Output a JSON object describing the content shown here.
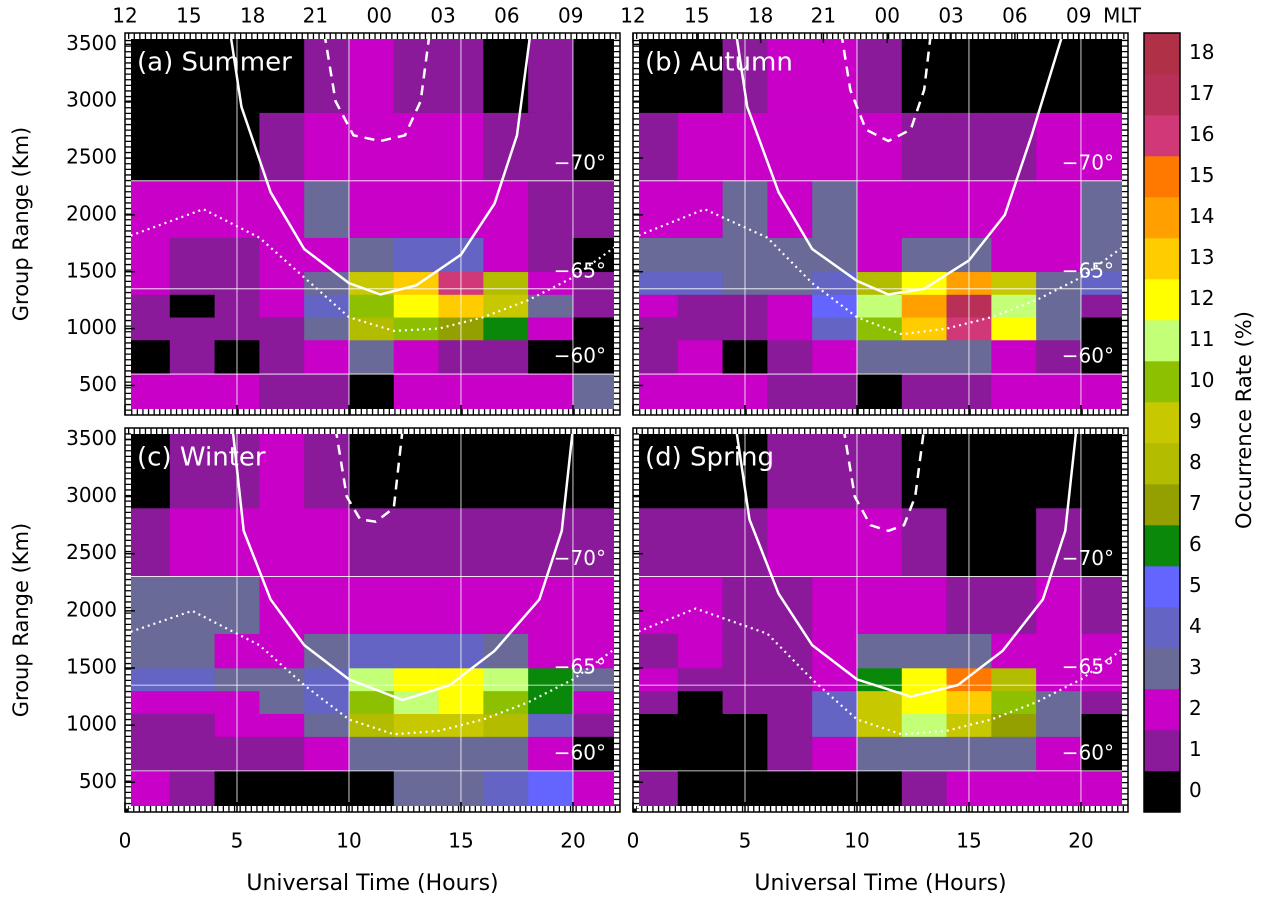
{
  "chart_data": [
    {
      "type": "heatmap",
      "title": "(a) Summer",
      "ylabel": "Group Range (Km)",
      "xlim": [
        0,
        22.1
      ],
      "ylim": [
        240,
        3600
      ],
      "xticks": [
        0,
        5,
        10,
        15,
        20
      ],
      "yticks": [
        500,
        1000,
        1500,
        2000,
        2500,
        3000,
        3500
      ],
      "x_bins": [
        0,
        2,
        4,
        6,
        8,
        10,
        12,
        14,
        16,
        18,
        20,
        22.1
      ],
      "y_bins": [
        240,
        600,
        900,
        1100,
        1300,
        1500,
        1800,
        2300,
        2900,
        3600
      ],
      "values": [
        [
          2,
          2,
          2,
          1,
          1,
          0,
          2,
          2,
          2,
          2,
          3
        ],
        [
          0,
          1,
          0,
          1,
          2,
          3,
          2,
          1,
          1,
          0,
          0
        ],
        [
          1,
          1,
          1,
          1,
          3,
          8,
          10,
          7,
          6,
          2,
          0
        ],
        [
          1,
          0,
          1,
          2,
          4,
          10,
          12,
          13,
          9,
          3,
          1
        ],
        [
          2,
          1,
          1,
          2,
          3,
          9,
          13,
          16,
          8,
          2,
          1
        ],
        [
          2,
          1,
          1,
          2,
          2,
          3,
          4,
          4,
          2,
          1,
          0
        ],
        [
          2,
          2,
          2,
          2,
          3,
          2,
          2,
          2,
          2,
          1,
          1
        ],
        [
          0,
          0,
          0,
          1,
          2,
          2,
          2,
          2,
          1,
          1,
          0
        ],
        [
          0,
          0,
          0,
          0,
          1,
          2,
          1,
          1,
          0,
          1,
          0
        ]
      ],
      "lat_lines": [
        {
          "value": 2300,
          "label": "−70°"
        },
        {
          "value": 1350,
          "label": "−65°"
        },
        {
          "value": 600,
          "label": "−60°"
        }
      ],
      "lines": [
        {
          "style": "solid",
          "x": [
            4.7,
            5.2,
            6.5,
            8,
            10,
            11.4,
            13,
            15,
            16.5,
            17.5,
            18.1
          ],
          "y": [
            3600,
            2950,
            2200,
            1700,
            1400,
            1300,
            1380,
            1650,
            2100,
            2700,
            3600
          ]
        },
        {
          "style": "dashed",
          "x": [
            8.9,
            9.4,
            10.2,
            11.4,
            12.5,
            13.2,
            13.6
          ],
          "y": [
            3600,
            3000,
            2700,
            2650,
            2700,
            3000,
            3600
          ]
        },
        {
          "style": "dotted",
          "x": [
            0,
            3.5,
            6,
            8,
            10,
            12,
            14,
            16,
            18,
            20,
            22.1
          ],
          "y": [
            1800,
            2050,
            1800,
            1450,
            1100,
            980,
            1000,
            1100,
            1250,
            1450,
            1750
          ]
        }
      ]
    },
    {
      "type": "heatmap",
      "title": "(b) Autumn",
      "xlim": [
        0,
        22.1
      ],
      "ylim": [
        240,
        3600
      ],
      "xticks": [
        0,
        5,
        10,
        15,
        20
      ],
      "yticks": [
        500,
        1000,
        1500,
        2000,
        2500,
        3000,
        3500
      ],
      "x2ticks": [
        {
          "value": 0,
          "label": "12"
        },
        {
          "value": 2.85,
          "label": "15"
        },
        {
          "value": 5.7,
          "label": "18"
        },
        {
          "value": 8.5,
          "label": "21"
        },
        {
          "value": 11.35,
          "label": "00"
        },
        {
          "value": 14.2,
          "label": "03"
        },
        {
          "value": 17.05,
          "label": "06"
        },
        {
          "value": 19.9,
          "label": "09"
        }
      ],
      "x2label": "MLT",
      "x_bins": [
        0,
        2,
        4,
        6,
        8,
        10,
        12,
        14,
        16,
        18,
        20,
        22.1
      ],
      "y_bins": [
        240,
        600,
        900,
        1100,
        1300,
        1500,
        1800,
        2300,
        2900,
        3600
      ],
      "values": [
        [
          2,
          2,
          2,
          1,
          1,
          0,
          1,
          1,
          2,
          2,
          2
        ],
        [
          1,
          2,
          0,
          1,
          2,
          3,
          3,
          3,
          2,
          1,
          0
        ],
        [
          1,
          1,
          1,
          2,
          4,
          10,
          13,
          16,
          12,
          3,
          0
        ],
        [
          2,
          1,
          1,
          2,
          5,
          11,
          14,
          17,
          11,
          3,
          1
        ],
        [
          4,
          4,
          3,
          3,
          4,
          8,
          12,
          14,
          9,
          3,
          4
        ],
        [
          3,
          3,
          3,
          3,
          3,
          2,
          3,
          3,
          2,
          2,
          3
        ],
        [
          2,
          2,
          3,
          2,
          3,
          2,
          2,
          2,
          2,
          2,
          3
        ],
        [
          1,
          2,
          2,
          2,
          2,
          2,
          1,
          1,
          1,
          2,
          2
        ],
        [
          0,
          0,
          1,
          2,
          2,
          1,
          0,
          0,
          0,
          0,
          0
        ]
      ],
      "lat_lines": [
        {
          "value": 2300,
          "label": "−70°"
        },
        {
          "value": 1350,
          "label": "−65°"
        },
        {
          "value": 600,
          "label": "−60°"
        }
      ],
      "lines": [
        {
          "style": "solid",
          "x": [
            4.6,
            5.1,
            6.5,
            8,
            10,
            11.4,
            13,
            15,
            16.6,
            17.8,
            19.2
          ],
          "y": [
            3600,
            2950,
            2200,
            1700,
            1420,
            1300,
            1350,
            1600,
            2000,
            2700,
            3600
          ]
        },
        {
          "style": "dashed",
          "x": [
            9.3,
            9.7,
            10.4,
            11.4,
            12.4,
            13.0,
            13.3
          ],
          "y": [
            3600,
            3100,
            2750,
            2650,
            2750,
            3100,
            3600
          ]
        },
        {
          "style": "dotted",
          "x": [
            0,
            3.2,
            6,
            8,
            10,
            12,
            14,
            16,
            18,
            20,
            22.1
          ],
          "y": [
            1800,
            2050,
            1800,
            1400,
            1100,
            950,
            1000,
            1100,
            1250,
            1450,
            1750
          ]
        }
      ]
    },
    {
      "type": "heatmap",
      "title": "(c) Winter",
      "ylabel": "Group Range (Km)",
      "xlabel": "Universal Time (Hours)",
      "xlim": [
        0,
        22.1
      ],
      "ylim": [
        240,
        3600
      ],
      "xticks": [
        0,
        5,
        10,
        15,
        20
      ],
      "yticks": [
        500,
        1000,
        1500,
        2000,
        2500,
        3000,
        3500
      ],
      "x_bins": [
        0,
        2,
        4,
        6,
        8,
        10,
        12,
        14,
        16,
        18,
        20,
        22.1
      ],
      "y_bins": [
        240,
        600,
        900,
        1100,
        1300,
        1500,
        1800,
        2300,
        2900,
        3600
      ],
      "values": [
        [
          2,
          1,
          0,
          0,
          0,
          0,
          3,
          3,
          4,
          5,
          2
        ],
        [
          1,
          1,
          1,
          1,
          2,
          3,
          3,
          3,
          3,
          2,
          0
        ],
        [
          1,
          1,
          2,
          2,
          3,
          8,
          9,
          9,
          8,
          4,
          1
        ],
        [
          2,
          2,
          2,
          3,
          4,
          10,
          11,
          12,
          10,
          6,
          2
        ],
        [
          4,
          4,
          3,
          3,
          4,
          11,
          12,
          12,
          11,
          6,
          3
        ],
        [
          3,
          3,
          2,
          2,
          3,
          4,
          4,
          4,
          3,
          2,
          2
        ],
        [
          3,
          3,
          3,
          2,
          2,
          2,
          2,
          2,
          2,
          2,
          2
        ],
        [
          1,
          2,
          2,
          2,
          2,
          1,
          1,
          1,
          1,
          1,
          1
        ],
        [
          0,
          1,
          1,
          2,
          1,
          0,
          0,
          0,
          0,
          0,
          0
        ]
      ],
      "lat_lines": [
        {
          "value": 2300,
          "label": "−70°"
        },
        {
          "value": 1350,
          "label": "−65°"
        },
        {
          "value": 600,
          "label": "−60°"
        }
      ],
      "lines": [
        {
          "style": "solid",
          "x": [
            4.8,
            5.3,
            6.5,
            8,
            10,
            12.4,
            14.5,
            16.5,
            18.5,
            19.5,
            20
          ],
          "y": [
            3600,
            2700,
            2100,
            1700,
            1400,
            1220,
            1350,
            1650,
            2100,
            2700,
            3600
          ]
        },
        {
          "style": "dashed",
          "x": [
            9.4,
            9.9,
            10.5,
            11.2,
            12,
            12.4
          ],
          "y": [
            3600,
            3000,
            2800,
            2780,
            2900,
            3600
          ]
        },
        {
          "style": "dotted",
          "x": [
            0,
            3,
            6,
            8,
            10,
            12,
            14,
            16,
            18,
            20,
            22.1
          ],
          "y": [
            1800,
            2000,
            1700,
            1350,
            1050,
            920,
            950,
            1050,
            1200,
            1400,
            1700
          ]
        }
      ]
    },
    {
      "type": "heatmap",
      "title": "(d) Spring",
      "xlabel": "Universal Time (Hours)",
      "xlim": [
        0,
        22.1
      ],
      "ylim": [
        240,
        3600
      ],
      "xticks": [
        0,
        5,
        10,
        15,
        20
      ],
      "yticks": [
        500,
        1000,
        1500,
        2000,
        2500,
        3000,
        3500
      ],
      "x_bins": [
        0,
        2,
        4,
        6,
        8,
        10,
        12,
        14,
        16,
        18,
        20,
        22.1
      ],
      "y_bins": [
        240,
        600,
        900,
        1100,
        1300,
        1500,
        1800,
        2300,
        2900,
        3600
      ],
      "values": [
        [
          1,
          0,
          0,
          0,
          0,
          0,
          1,
          2,
          2,
          2,
          2
        ],
        [
          0,
          0,
          0,
          1,
          2,
          3,
          3,
          3,
          3,
          2,
          0
        ],
        [
          0,
          0,
          0,
          1,
          4,
          9,
          11,
          9,
          7,
          3,
          0
        ],
        [
          1,
          0,
          1,
          1,
          4,
          9,
          12,
          13,
          10,
          3,
          1
        ],
        [
          2,
          1,
          1,
          1,
          2,
          6,
          12,
          15,
          8,
          2,
          2
        ],
        [
          1,
          2,
          1,
          1,
          2,
          3,
          3,
          3,
          2,
          2,
          2
        ],
        [
          2,
          2,
          1,
          1,
          2,
          2,
          2,
          1,
          1,
          2,
          1
        ],
        [
          1,
          1,
          1,
          2,
          2,
          2,
          1,
          0,
          0,
          1,
          0
        ],
        [
          0,
          0,
          0,
          1,
          1,
          1,
          0,
          0,
          0,
          0,
          0
        ]
      ],
      "lat_lines": [
        {
          "value": 2300,
          "label": "−70°"
        },
        {
          "value": 1350,
          "label": "−65°"
        },
        {
          "value": 600,
          "label": "−60°"
        }
      ],
      "lines": [
        {
          "style": "solid",
          "x": [
            4.6,
            5.2,
            6.5,
            8,
            10,
            12.4,
            14.5,
            16.5,
            18.3,
            19.3,
            19.8
          ],
          "y": [
            3600,
            2800,
            2150,
            1700,
            1400,
            1250,
            1350,
            1650,
            2100,
            2700,
            3600
          ]
        },
        {
          "style": "dashed",
          "x": [
            9.4,
            9.9,
            10.6,
            11.4,
            12.1,
            12.6,
            13.0
          ],
          "y": [
            3600,
            3000,
            2750,
            2700,
            2750,
            3000,
            3600
          ]
        },
        {
          "style": "dotted",
          "x": [
            0,
            2.8,
            6,
            8,
            10,
            12,
            14,
            16,
            18,
            20,
            22.1
          ],
          "y": [
            1800,
            2020,
            1800,
            1400,
            1050,
            920,
            950,
            1050,
            1200,
            1400,
            1700
          ]
        }
      ]
    },
    {
      "type": "colorbar",
      "label": "Occurrence Rate (%)",
      "levels": [
        0,
        1,
        2,
        3,
        4,
        5,
        6,
        7,
        8,
        9,
        10,
        11,
        12,
        13,
        14,
        15,
        16,
        17,
        18
      ],
      "colors": [
        "#000000",
        "#8a1a9a",
        "#c800c8",
        "#6a6a98",
        "#6464c4",
        "#6464ff",
        "#0a880a",
        "#94a000",
        "#b4bc00",
        "#c8c800",
        "#8cc000",
        "#c4ff78",
        "#ffff00",
        "#ffcc00",
        "#ffa000",
        "#ff7800",
        "#d03878",
        "#b83058",
        "#b03048"
      ]
    }
  ]
}
